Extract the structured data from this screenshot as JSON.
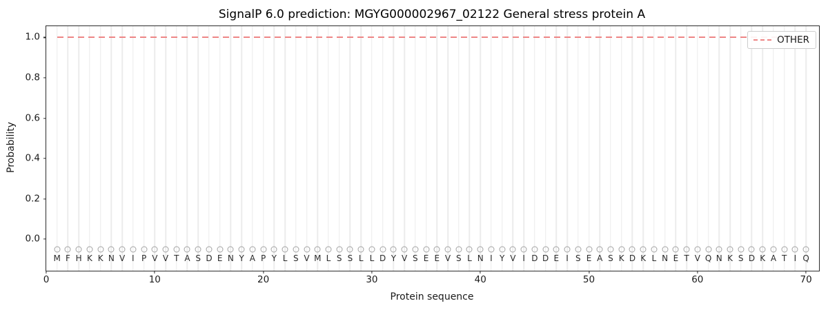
{
  "chart_data": {
    "type": "line",
    "title": "SignalP 6.0 prediction: MGYG000002967_02122 General stress protein A",
    "xlabel": "Protein sequence",
    "ylabel": "Probability",
    "xlim": [
      0,
      71.2
    ],
    "ylim": [
      -0.156,
      1.056
    ],
    "xticks": {
      "values": [
        0,
        10,
        20,
        30,
        40,
        50,
        60,
        70
      ],
      "labels": [
        "0",
        "10",
        "20",
        "30",
        "40",
        "50",
        "60",
        "70"
      ]
    },
    "yticks": {
      "values": [
        0.0,
        0.2,
        0.4,
        0.6,
        0.8,
        1.0
      ],
      "labels": [
        "0.0",
        "0.2",
        "0.4",
        "0.6",
        "0.8",
        "1.0"
      ]
    },
    "grid": {
      "vertical_per_residue": true,
      "color": "#ececec"
    },
    "legend": {
      "position": "upper-right",
      "entries": [
        {
          "label": "OTHER",
          "color": "#ee8585",
          "linestyle": "dashed"
        }
      ]
    },
    "sequence": "MFHKKNVIPVVTASDENYAPYLSVMLSSLLDYVSEEVSLNIYVIDDEISEASKDKLNETVQNKSDKATIQ",
    "series": [
      {
        "name": "OTHER",
        "color": "#ee8585",
        "linestyle": "dashed",
        "x_start": 1,
        "x_end": 70,
        "values": [
          1.0,
          1.0,
          1.0,
          1.0,
          1.0,
          1.0,
          1.0,
          1.0,
          1.0,
          1.0,
          1.0,
          1.0,
          1.0,
          1.0,
          1.0,
          1.0,
          1.0,
          1.0,
          1.0,
          1.0,
          1.0,
          1.0,
          1.0,
          1.0,
          1.0,
          1.0,
          1.0,
          1.0,
          1.0,
          1.0,
          1.0,
          1.0,
          1.0,
          1.0,
          1.0,
          1.0,
          1.0,
          1.0,
          1.0,
          1.0,
          1.0,
          1.0,
          1.0,
          1.0,
          1.0,
          1.0,
          1.0,
          1.0,
          1.0,
          1.0,
          1.0,
          1.0,
          1.0,
          1.0,
          1.0,
          1.0,
          1.0,
          1.0,
          1.0,
          1.0,
          1.0,
          1.0,
          1.0,
          1.0,
          1.0,
          1.0,
          1.0,
          1.0,
          1.0,
          1.0
        ]
      }
    ],
    "residue_marker": {
      "glyph": "O",
      "y": -0.05,
      "color": "#a3a3a3"
    },
    "letter_row_y": -0.096
  }
}
